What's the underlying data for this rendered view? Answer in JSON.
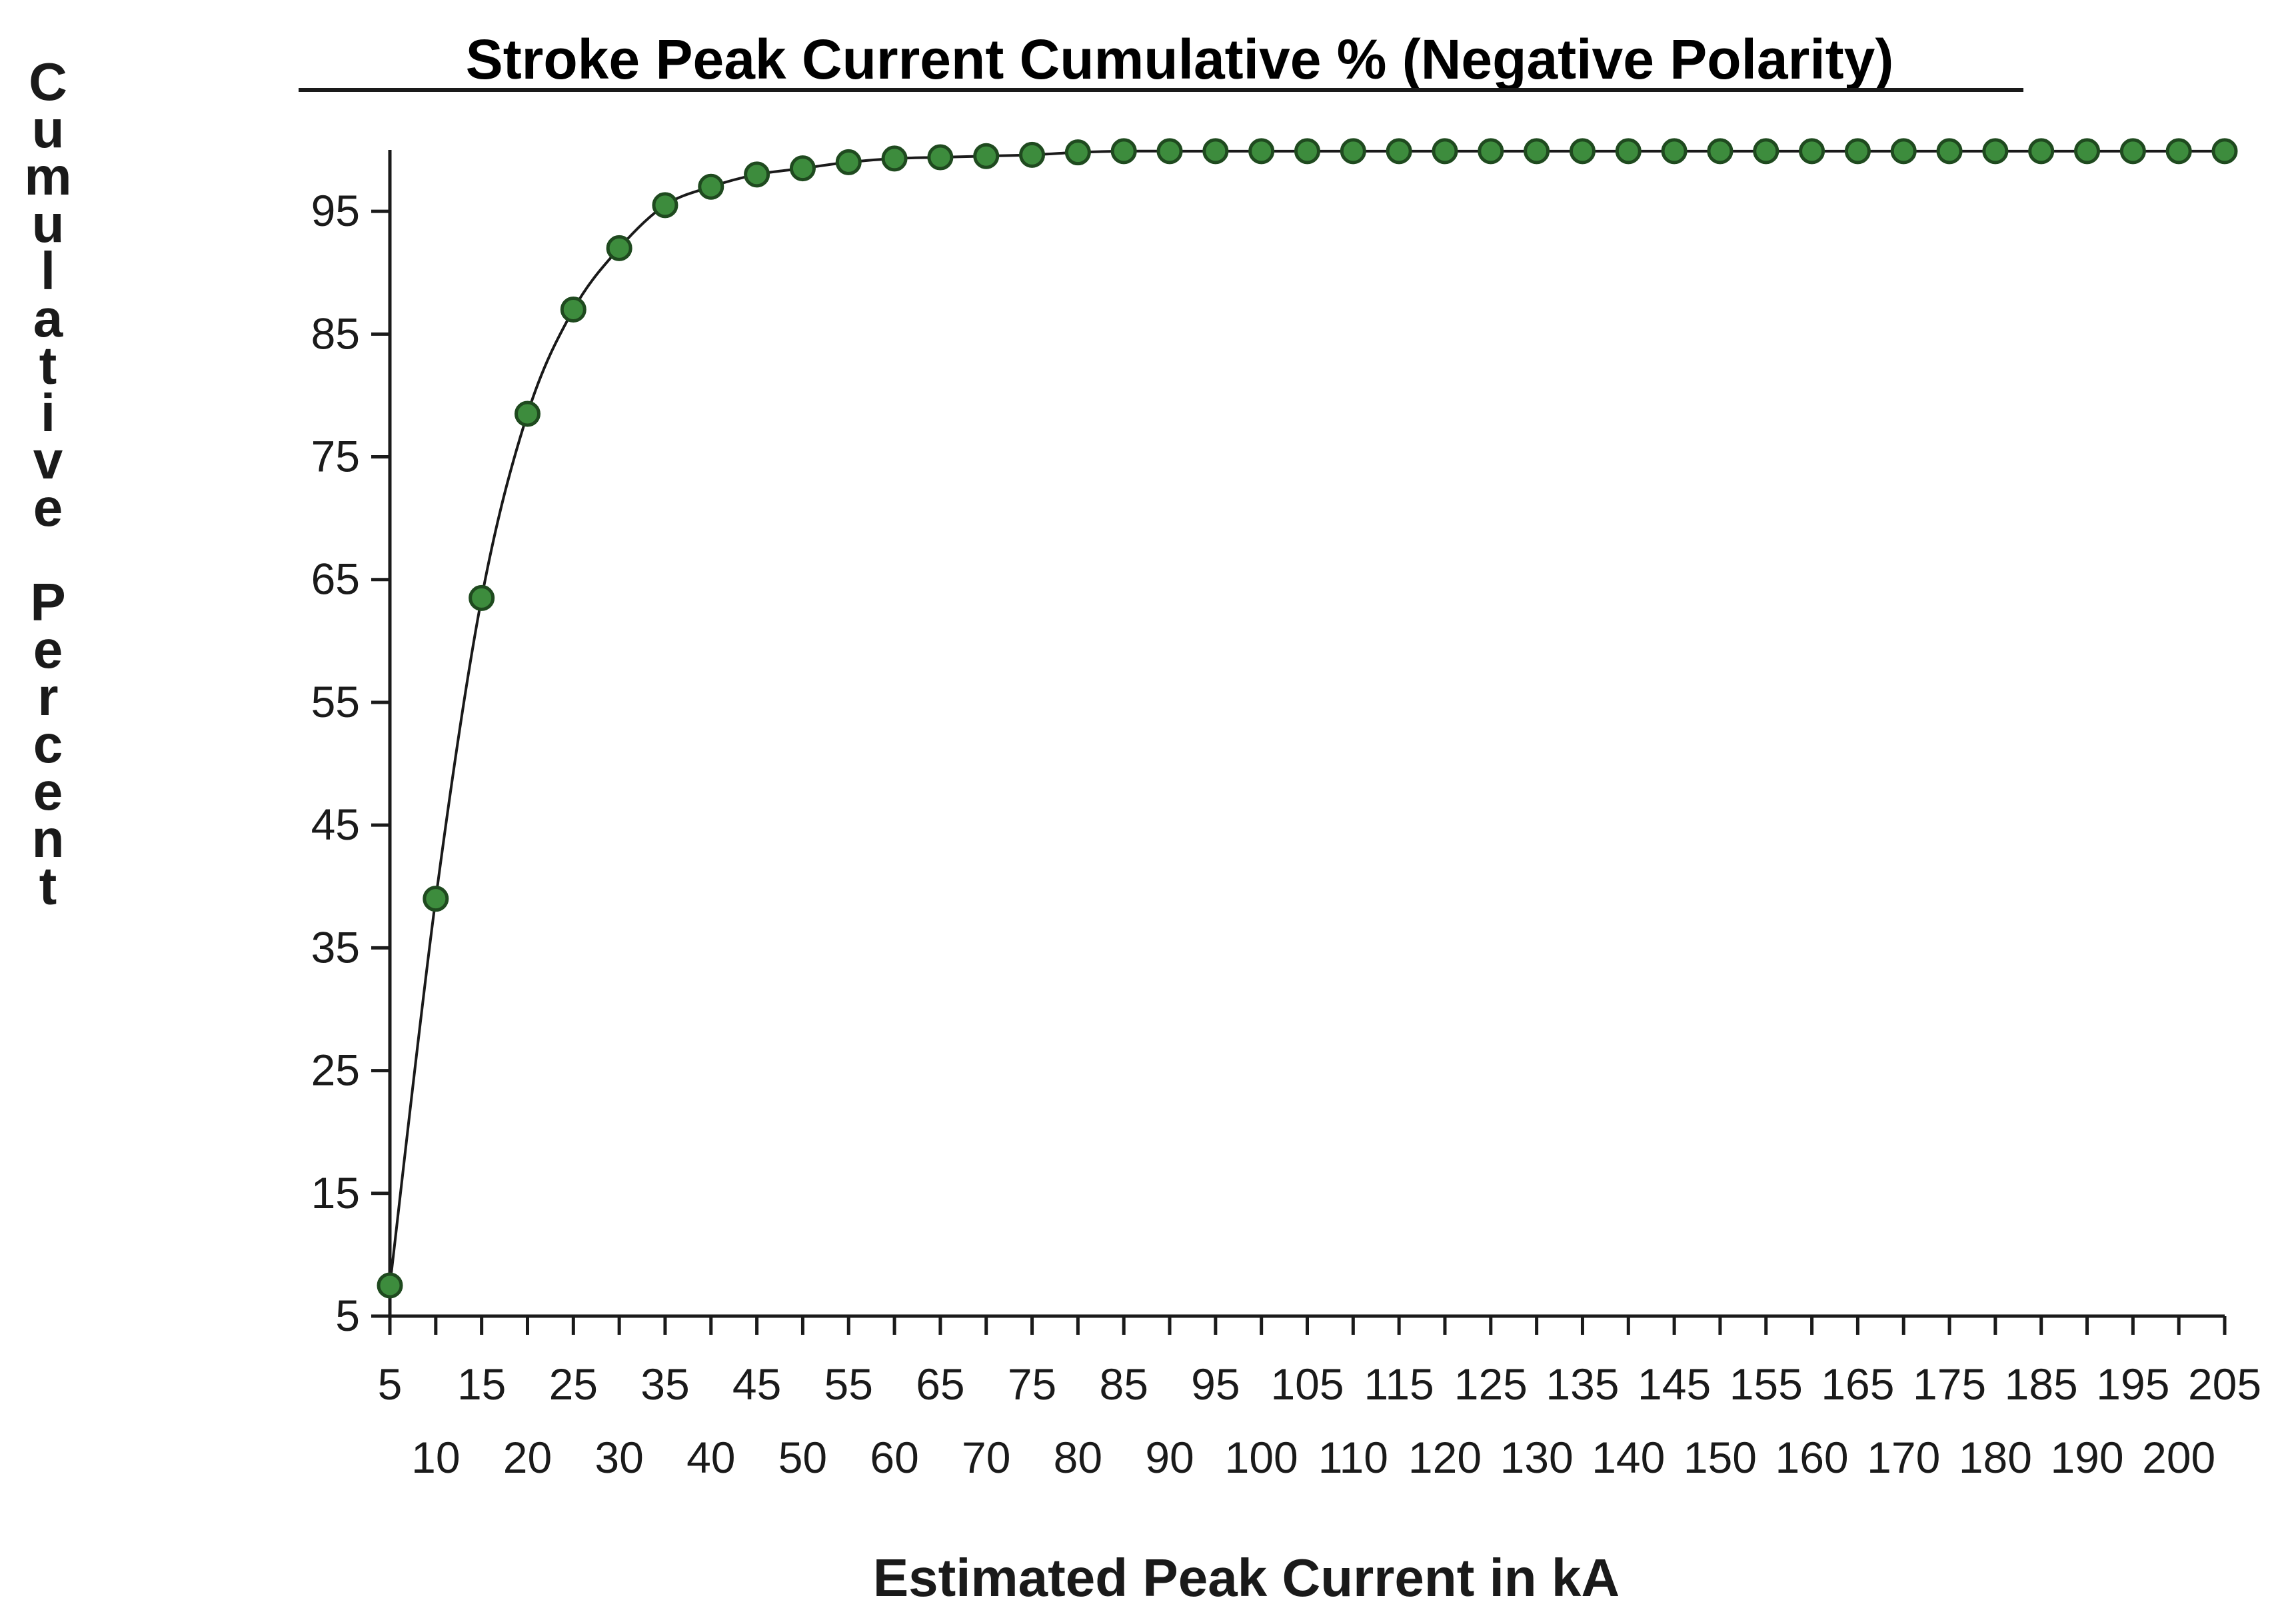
{
  "chart_data": {
    "type": "line",
    "title": "Stroke Peak Current Cumulative % (Negative Polarity)",
    "xlabel": "Estimated Peak Current in kA",
    "ylabel": "Cumulative Percent",
    "x": [
      5,
      10,
      15,
      20,
      25,
      30,
      35,
      40,
      45,
      50,
      55,
      60,
      65,
      70,
      75,
      80,
      85,
      90,
      95,
      100,
      105,
      110,
      115,
      120,
      125,
      130,
      135,
      140,
      145,
      150,
      155,
      160,
      165,
      170,
      175,
      180,
      185,
      190,
      195,
      200,
      205
    ],
    "series": [
      {
        "values": [
          7.5,
          39,
          63.5,
          78.5,
          87,
          92,
          95.5,
          97,
          98,
          98.5,
          99,
          99.3,
          99.4,
          99.5,
          99.6,
          99.8,
          99.9,
          99.9,
          99.9,
          99.9,
          99.9,
          99.9,
          99.9,
          99.9,
          99.9,
          99.9,
          99.9,
          99.9,
          99.9,
          99.9,
          99.9,
          99.9,
          99.9,
          99.9,
          99.9,
          99.9,
          99.9,
          99.9,
          99.9,
          99.9,
          99.9
        ]
      }
    ],
    "xticks_top": [
      "5",
      "15",
      "25",
      "35",
      "45",
      "55",
      "65",
      "75",
      "85",
      "95",
      "105",
      "115",
      "125",
      "135",
      "145",
      "155",
      "165",
      "175",
      "185",
      "195",
      "205"
    ],
    "xticks_bottom": [
      "10",
      "20",
      "30",
      "40",
      "50",
      "60",
      "70",
      "80",
      "90",
      "100",
      "110",
      "120",
      "130",
      "140",
      "150",
      "160",
      "170",
      "180",
      "190",
      "200"
    ],
    "yticks": [
      "5",
      "15",
      "25",
      "35",
      "45",
      "55",
      "65",
      "75",
      "85",
      "95"
    ],
    "ylim": [
      5,
      100
    ],
    "xlim": [
      5,
      205
    ],
    "grid": false,
    "colors": {
      "marker_fill": "#3d8c3d",
      "marker_stroke": "#1f4a1f",
      "line": "#1a1a1a"
    }
  }
}
